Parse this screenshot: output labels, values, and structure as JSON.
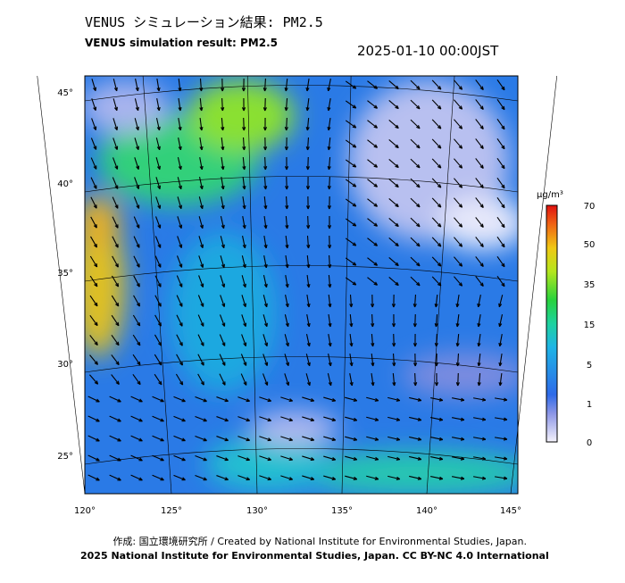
{
  "header": {
    "title_ja": "VENUS シミュレーション結果: PM2.5",
    "title_en": "VENUS simulation result: PM2.5",
    "timestamp": "2025-01-10 00:00JST"
  },
  "map": {
    "lat_labels": [
      "45°",
      "40°",
      "35°",
      "30°",
      "25°"
    ],
    "lon_labels": [
      "120°",
      "125°",
      "130°",
      "135°",
      "140°",
      "145°"
    ]
  },
  "colorbar": {
    "unit": "μg/m³",
    "labels": [
      "70",
      "50",
      "35",
      "15",
      "5",
      "1",
      "0"
    ]
  },
  "footer": {
    "credit": "作成: 国立環境研究所 / Created by National Institute for Environmental Studies, Japan.",
    "copyright": "2025 National Institute for Environmental Studies, Japan. CC BY-NC 4.0 International"
  }
}
